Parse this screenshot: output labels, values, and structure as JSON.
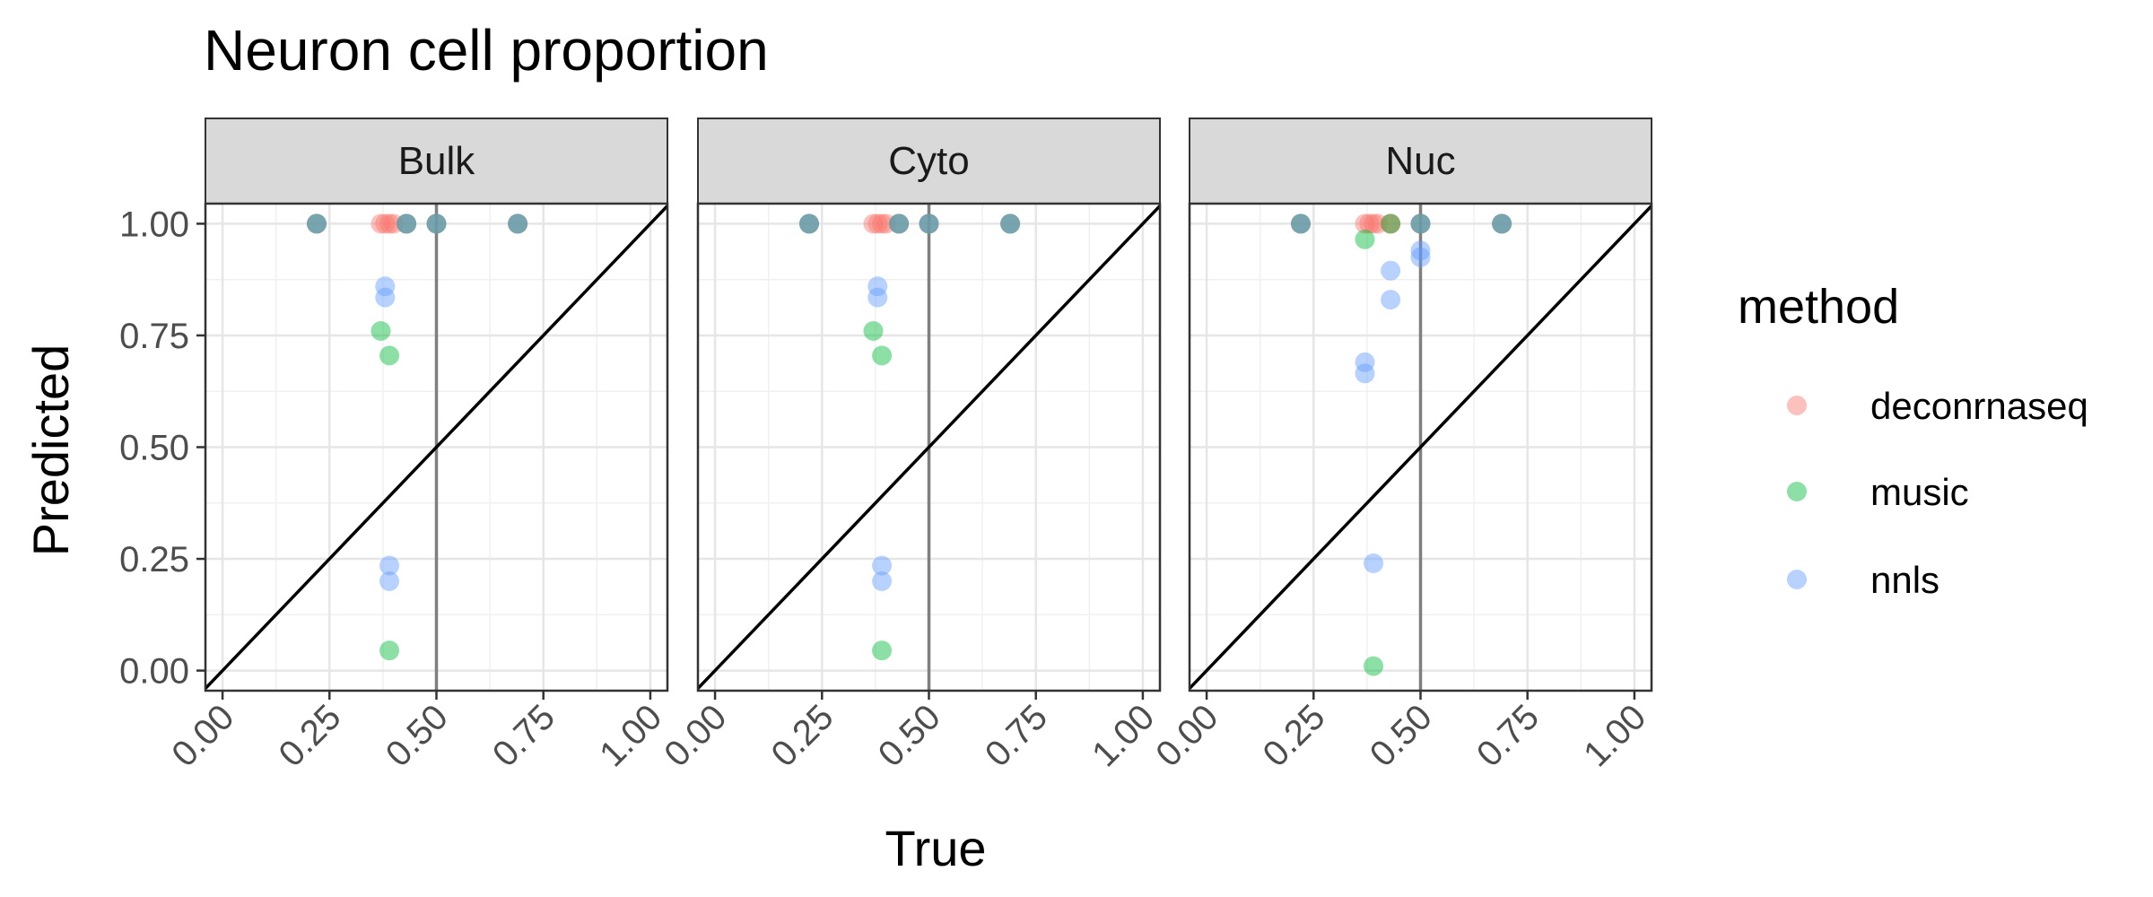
{
  "chart_data": {
    "type": "scatter",
    "title": "Neuron cell proportion",
    "xlabel": "True",
    "ylabel": "Predicted",
    "xlim": [
      -0.04,
      1.04
    ],
    "ylim": [
      -0.045,
      1.045
    ],
    "xticks": [
      "0.00",
      "0.25",
      "0.50",
      "0.75",
      "1.00"
    ],
    "yticks": [
      "0.00",
      "0.25",
      "0.50",
      "0.75",
      "1.00"
    ],
    "x_tick_values": [
      0,
      0.25,
      0.5,
      0.75,
      1
    ],
    "y_tick_values": [
      0,
      0.25,
      0.5,
      0.75,
      1
    ],
    "reference_line": "y = x",
    "vertical_line_x": 0.5,
    "grid": true,
    "point_alpha": 0.45,
    "legend": {
      "title": "method",
      "position": "right",
      "entries": [
        {
          "name": "deconrnaseq",
          "color": "#F8766D"
        },
        {
          "name": "music",
          "color": "#00BA38"
        },
        {
          "name": "nnls",
          "color": "#619CFF"
        }
      ]
    },
    "panels": [
      {
        "strip": "Bulk",
        "series": [
          {
            "name": "deconrnaseq",
            "points": [
              [
                0.22,
                1.0
              ],
              [
                0.37,
                1.0
              ],
              [
                0.38,
                1.0
              ],
              [
                0.39,
                1.0
              ],
              [
                0.4,
                1.0
              ],
              [
                0.43,
                1.0
              ],
              [
                0.5,
                1.0
              ],
              [
                0.5,
                1.0
              ],
              [
                0.69,
                1.0
              ],
              [
                0.22,
                1.0
              ],
              [
                0.43,
                1.0
              ],
              [
                0.69,
                1.0
              ]
            ]
          },
          {
            "name": "music",
            "points": [
              [
                0.37,
                0.76
              ],
              [
                0.39,
                0.705
              ],
              [
                0.39,
                0.045
              ],
              [
                0.22,
                1.0
              ],
              [
                0.43,
                1.0
              ],
              [
                0.5,
                1.0
              ],
              [
                0.69,
                1.0
              ]
            ]
          },
          {
            "name": "nnls",
            "points": [
              [
                0.38,
                0.86
              ],
              [
                0.38,
                0.835
              ],
              [
                0.39,
                0.235
              ],
              [
                0.39,
                0.2
              ],
              [
                0.22,
                1.0
              ],
              [
                0.43,
                1.0
              ],
              [
                0.5,
                1.0
              ],
              [
                0.69,
                1.0
              ]
            ]
          }
        ]
      },
      {
        "strip": "Cyto",
        "series": [
          {
            "name": "deconrnaseq",
            "points": [
              [
                0.22,
                1.0
              ],
              [
                0.37,
                1.0
              ],
              [
                0.38,
                1.0
              ],
              [
                0.39,
                1.0
              ],
              [
                0.4,
                1.0
              ],
              [
                0.43,
                1.0
              ],
              [
                0.5,
                1.0
              ],
              [
                0.5,
                1.0
              ],
              [
                0.69,
                1.0
              ],
              [
                0.22,
                1.0
              ],
              [
                0.43,
                1.0
              ],
              [
                0.69,
                1.0
              ]
            ]
          },
          {
            "name": "music",
            "points": [
              [
                0.37,
                0.76
              ],
              [
                0.39,
                0.705
              ],
              [
                0.39,
                0.045
              ],
              [
                0.22,
                1.0
              ],
              [
                0.43,
                1.0
              ],
              [
                0.5,
                1.0
              ],
              [
                0.69,
                1.0
              ]
            ]
          },
          {
            "name": "nnls",
            "points": [
              [
                0.38,
                0.86
              ],
              [
                0.38,
                0.835
              ],
              [
                0.39,
                0.235
              ],
              [
                0.39,
                0.2
              ],
              [
                0.22,
                1.0
              ],
              [
                0.43,
                1.0
              ],
              [
                0.5,
                1.0
              ],
              [
                0.69,
                1.0
              ]
            ]
          }
        ]
      },
      {
        "strip": "Nuc",
        "series": [
          {
            "name": "deconrnaseq",
            "points": [
              [
                0.22,
                1.0
              ],
              [
                0.37,
                1.0
              ],
              [
                0.38,
                1.0
              ],
              [
                0.39,
                1.0
              ],
              [
                0.4,
                1.0
              ],
              [
                0.43,
                1.0
              ],
              [
                0.5,
                1.0
              ],
              [
                0.5,
                1.0
              ],
              [
                0.69,
                1.0
              ],
              [
                0.22,
                1.0
              ],
              [
                0.43,
                1.0
              ],
              [
                0.69,
                1.0
              ]
            ]
          },
          {
            "name": "music",
            "points": [
              [
                0.37,
                0.965
              ],
              [
                0.39,
                0.01
              ],
              [
                0.22,
                1.0
              ],
              [
                0.43,
                1.0
              ],
              [
                0.5,
                1.0
              ],
              [
                0.69,
                1.0
              ]
            ]
          },
          {
            "name": "nnls",
            "points": [
              [
                0.43,
                0.895
              ],
              [
                0.5,
                0.94
              ],
              [
                0.5,
                0.925
              ],
              [
                0.43,
                0.83
              ],
              [
                0.37,
                0.69
              ],
              [
                0.37,
                0.665
              ],
              [
                0.39,
                0.24
              ],
              [
                0.22,
                1.0
              ],
              [
                0.5,
                1.0
              ],
              [
                0.69,
                1.0
              ]
            ]
          }
        ]
      }
    ]
  }
}
